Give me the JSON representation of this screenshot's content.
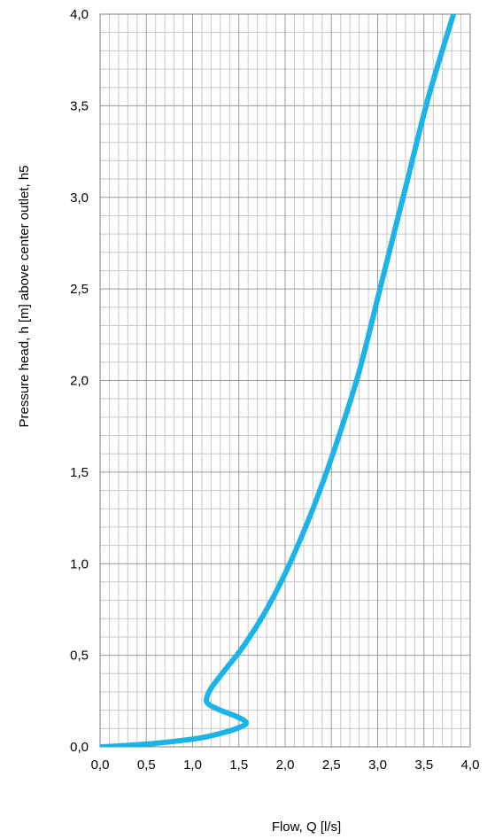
{
  "chart_data": {
    "type": "line",
    "title": "",
    "xlabel": "Flow, Q [l/s]",
    "ylabel": "Pressure head, h [m] above center outlet, h5",
    "xlim": [
      0,
      4
    ],
    "ylim": [
      0,
      4
    ],
    "x_ticks": [
      "0,0",
      "0,5",
      "1,0",
      "1,5",
      "2,0",
      "2,5",
      "3,0",
      "3,5",
      "4,0"
    ],
    "y_ticks": [
      "0,0",
      "0,5",
      "1,0",
      "1,5",
      "2,0",
      "2,5",
      "3,0",
      "3,5",
      "4,0"
    ],
    "grid": true,
    "series": [
      {
        "color": "#1ab4e8",
        "x": [
          0.0,
          0.2,
          0.5,
          0.8,
          1.1,
          1.35,
          1.5,
          1.58,
          1.5,
          1.3,
          1.18,
          1.15,
          1.2,
          1.35,
          1.55,
          1.8,
          2.05,
          2.3,
          2.55,
          2.8,
          3.05,
          3.3,
          3.55,
          3.85
        ],
        "y": [
          0.0,
          0.005,
          0.015,
          0.03,
          0.05,
          0.08,
          0.105,
          0.13,
          0.16,
          0.2,
          0.23,
          0.26,
          0.32,
          0.42,
          0.55,
          0.75,
          1.0,
          1.3,
          1.65,
          2.05,
          2.55,
          3.05,
          3.55,
          4.05
        ]
      }
    ]
  }
}
